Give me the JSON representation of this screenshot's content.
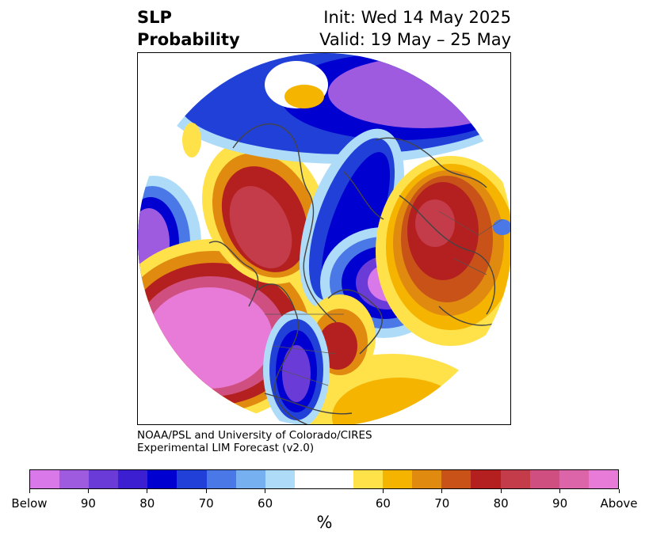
{
  "title": {
    "line1": "SLP",
    "line2": "Probability",
    "init": "Init: Wed 14 May 2025",
    "valid": "Valid: 19 May – 25 May"
  },
  "credit": {
    "line1": "NOAA/PSL and University of Colorado/CIRES",
    "line2": "Experimental LIM Forecast (v2.0)"
  },
  "colorbar": {
    "colors": [
      "#d978e8",
      "#9f5be0",
      "#6b3bd8",
      "#3b1fd0",
      "#0000d0",
      "#2140d8",
      "#4a78e6",
      "#76b0f0",
      "#aedcf8",
      "#ffffff",
      "#ffffff",
      "#ffe14a",
      "#f4b400",
      "#e08a10",
      "#c85218",
      "#b42020",
      "#c43b4a",
      "#cf5080",
      "#dc64a8",
      "#e87ad8"
    ],
    "tick_labels": [
      "Below",
      "90",
      "80",
      "70",
      "60",
      "60",
      "70",
      "80",
      "90",
      "Above"
    ],
    "unit": "%"
  },
  "map": {
    "projection": "polar-stereographic",
    "variable": "sea-level-pressure-probability"
  }
}
